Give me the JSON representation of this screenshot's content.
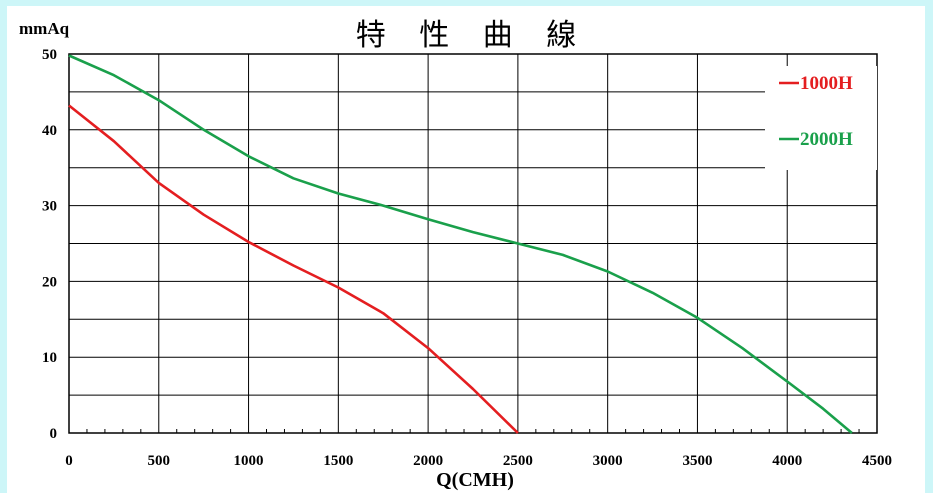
{
  "chart_data": {
    "type": "line",
    "title": "特 性 曲 線",
    "xlabel": "Q(CMH)",
    "ylabel": "mmAq",
    "xlim": [
      0,
      4500
    ],
    "ylim": [
      0,
      50
    ],
    "xticks": [
      0,
      500,
      1000,
      1500,
      2000,
      2500,
      3000,
      3500,
      4000,
      4500
    ],
    "yticks": [
      0,
      10,
      20,
      30,
      40,
      50
    ],
    "grid": true,
    "legend_position": "top-right",
    "series": [
      {
        "name": "1000H",
        "color": "#e41e20",
        "points": [
          [
            0,
            43.2
          ],
          [
            250,
            38.5
          ],
          [
            500,
            33
          ],
          [
            750,
            28.8
          ],
          [
            1000,
            25.2
          ],
          [
            1250,
            22.1
          ],
          [
            1500,
            19.2
          ],
          [
            1750,
            15.8
          ],
          [
            2000,
            11.2
          ],
          [
            2250,
            5.8
          ],
          [
            2500,
            0
          ]
        ]
      },
      {
        "name": "2000H",
        "color": "#1aa04b",
        "points": [
          [
            0,
            49.8
          ],
          [
            250,
            47.2
          ],
          [
            500,
            43.9
          ],
          [
            750,
            40
          ],
          [
            1000,
            36.5
          ],
          [
            1250,
            33.6
          ],
          [
            1500,
            31.6
          ],
          [
            1750,
            30
          ],
          [
            2000,
            28.2
          ],
          [
            2250,
            26.5
          ],
          [
            2500,
            25
          ],
          [
            2750,
            23.5
          ],
          [
            3000,
            21.3
          ],
          [
            3250,
            18.5
          ],
          [
            3500,
            15.2
          ],
          [
            3750,
            11.2
          ],
          [
            4000,
            6.8
          ],
          [
            4200,
            3.2
          ],
          [
            4360,
            0
          ]
        ]
      }
    ]
  }
}
